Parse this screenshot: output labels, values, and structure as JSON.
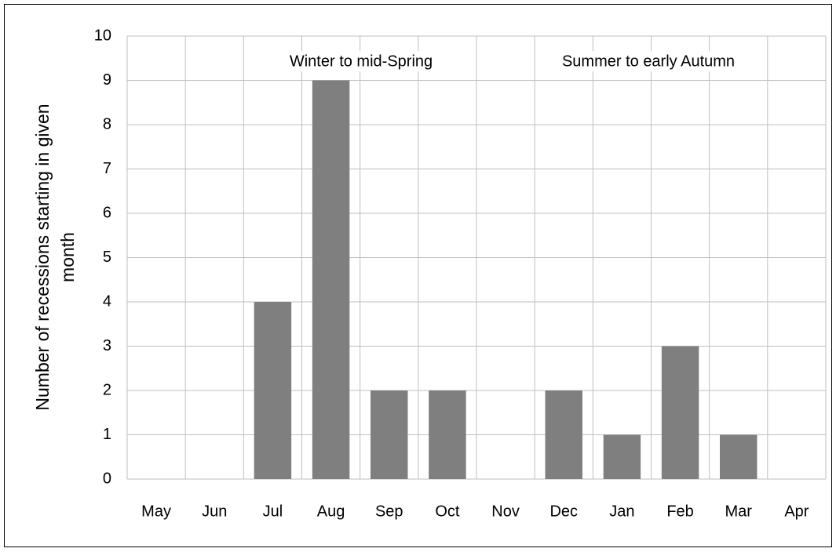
{
  "chart_data": {
    "type": "bar",
    "y_label": [
      "Number of recessions starting in given",
      "month"
    ],
    "annotations": [
      "Winter to mid-Spring",
      "Summer to early Autumn"
    ],
    "categories": [
      "May",
      "Jun",
      "Jul",
      "Aug",
      "Sep",
      "Oct",
      "Nov",
      "Dec",
      "Jan",
      "Feb",
      "Mar",
      "Apr"
    ],
    "values": [
      0,
      0,
      4,
      9,
      2,
      2,
      0,
      2,
      1,
      3,
      1,
      0
    ],
    "color": "#7f7f7f",
    "ylim": [
      0,
      10
    ],
    "yticks": [
      0,
      1,
      2,
      3,
      4,
      5,
      6,
      7,
      8,
      9,
      10
    ],
    "grid": true
  }
}
